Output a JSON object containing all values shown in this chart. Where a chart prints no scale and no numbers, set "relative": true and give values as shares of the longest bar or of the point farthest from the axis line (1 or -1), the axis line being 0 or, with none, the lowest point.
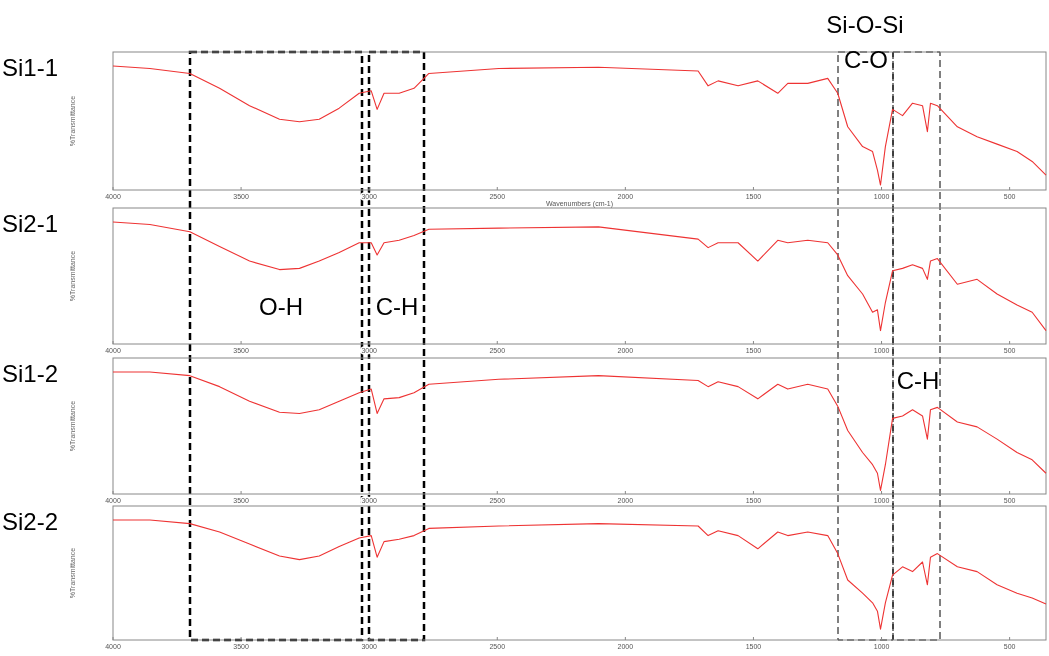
{
  "chart_data": [
    {
      "type": "line",
      "title": "Si1-1",
      "xlabel": "Wavenumbers (cm-1)",
      "ylabel": "%Transmittance",
      "relative": true,
      "xlim": [
        4000,
        358
      ],
      "xticks": [
        4000,
        3500,
        3000,
        2500,
        2000,
        1500,
        1000,
        500
      ],
      "x": [
        4000,
        3856,
        3700,
        3584,
        3467,
        3350,
        3272,
        3195,
        3117,
        3039,
        2992,
        2969,
        2942,
        2883,
        2825,
        2767,
        2494,
        2105,
        1716,
        1677,
        1638,
        1560,
        1483,
        1405,
        1366,
        1288,
        1210,
        1171,
        1132,
        1074,
        1035,
        1016,
        1004,
        985,
        957,
        918,
        879,
        840,
        821,
        809,
        782,
        704,
        627,
        549,
        471,
        412,
        358
      ],
      "series": [
        {
          "color": "#ee3333",
          "values": [
            1.0,
            0.98,
            0.94,
            0.82,
            0.68,
            0.57,
            0.55,
            0.57,
            0.66,
            0.78,
            0.8,
            0.65,
            0.78,
            0.78,
            0.82,
            0.94,
            0.98,
            0.99,
            0.96,
            0.84,
            0.88,
            0.84,
            0.88,
            0.78,
            0.86,
            0.86,
            0.9,
            0.78,
            0.51,
            0.35,
            0.31,
            0.16,
            0.04,
            0.35,
            0.65,
            0.6,
            0.7,
            0.68,
            0.47,
            0.7,
            0.68,
            0.51,
            0.43,
            0.37,
            0.31,
            0.23,
            0.12
          ]
        }
      ],
      "annotations": [
        "Si-O-Si",
        "C-O"
      ]
    },
    {
      "type": "line",
      "title": "Si2-1",
      "ylabel": "%Transmittance",
      "relative": true,
      "xlim": [
        4000,
        358
      ],
      "xticks": [
        4000,
        3500,
        3000,
        2500,
        2000,
        1500,
        1000,
        500
      ],
      "x": [
        4000,
        3856,
        3700,
        3584,
        3467,
        3350,
        3272,
        3195,
        3117,
        3039,
        2992,
        2969,
        2942,
        2883,
        2825,
        2767,
        2494,
        2105,
        1716,
        1677,
        1638,
        1560,
        1483,
        1405,
        1366,
        1288,
        1210,
        1171,
        1132,
        1074,
        1035,
        1016,
        1004,
        985,
        957,
        918,
        879,
        840,
        821,
        809,
        782,
        704,
        627,
        549,
        471,
        412,
        358
      ],
      "series": [
        {
          "color": "#ee3333",
          "values": [
            1.0,
            0.98,
            0.92,
            0.8,
            0.68,
            0.61,
            0.62,
            0.68,
            0.75,
            0.83,
            0.83,
            0.73,
            0.83,
            0.85,
            0.89,
            0.94,
            0.95,
            0.96,
            0.86,
            0.79,
            0.83,
            0.83,
            0.68,
            0.85,
            0.83,
            0.85,
            0.83,
            0.73,
            0.56,
            0.41,
            0.26,
            0.28,
            0.11,
            0.34,
            0.6,
            0.62,
            0.65,
            0.62,
            0.53,
            0.68,
            0.7,
            0.49,
            0.53,
            0.41,
            0.32,
            0.26,
            0.11
          ]
        }
      ],
      "annotations": [
        "O-H",
        "C-H"
      ]
    },
    {
      "type": "line",
      "title": "Si1-2",
      "ylabel": "%Transmittance",
      "relative": true,
      "xlim": [
        4000,
        358
      ],
      "xticks": [
        4000,
        3500,
        3000,
        2500,
        2000,
        1500,
        1000,
        500
      ],
      "x": [
        4000,
        3856,
        3700,
        3584,
        3467,
        3350,
        3272,
        3195,
        3117,
        3039,
        2992,
        2969,
        2942,
        2883,
        2825,
        2767,
        2494,
        2105,
        1716,
        1677,
        1638,
        1560,
        1483,
        1405,
        1366,
        1288,
        1210,
        1171,
        1132,
        1074,
        1035,
        1016,
        1004,
        985,
        957,
        918,
        879,
        840,
        821,
        809,
        782,
        704,
        627,
        549,
        471,
        412,
        358
      ],
      "series": [
        {
          "color": "#ee3333",
          "values": [
            1.0,
            1.0,
            0.97,
            0.88,
            0.76,
            0.67,
            0.66,
            0.69,
            0.76,
            0.83,
            0.86,
            0.66,
            0.78,
            0.79,
            0.83,
            0.9,
            0.94,
            0.97,
            0.93,
            0.88,
            0.92,
            0.88,
            0.78,
            0.9,
            0.86,
            0.9,
            0.86,
            0.72,
            0.52,
            0.34,
            0.24,
            0.17,
            0.03,
            0.24,
            0.62,
            0.64,
            0.69,
            0.64,
            0.45,
            0.69,
            0.71,
            0.59,
            0.55,
            0.45,
            0.34,
            0.28,
            0.17
          ]
        }
      ],
      "annotations": [
        "C-H"
      ]
    },
    {
      "type": "line",
      "title": "Si2-2",
      "ylabel": "%Transmittance",
      "relative": true,
      "xlim": [
        4000,
        358
      ],
      "xticks": [
        4000,
        3500,
        3000,
        2500,
        2000,
        1500,
        1000,
        500
      ],
      "x": [
        4000,
        3856,
        3700,
        3584,
        3467,
        3350,
        3272,
        3195,
        3117,
        3039,
        2992,
        2969,
        2942,
        2883,
        2825,
        2767,
        2494,
        2105,
        1716,
        1677,
        1638,
        1560,
        1483,
        1405,
        1366,
        1288,
        1210,
        1171,
        1132,
        1074,
        1035,
        1016,
        1004,
        985,
        957,
        918,
        879,
        840,
        821,
        809,
        782,
        704,
        627,
        549,
        471,
        412,
        358
      ],
      "series": [
        {
          "color": "#ee3333",
          "values": [
            1.0,
            1.0,
            0.97,
            0.9,
            0.8,
            0.7,
            0.67,
            0.7,
            0.78,
            0.85,
            0.87,
            0.69,
            0.82,
            0.84,
            0.87,
            0.93,
            0.95,
            0.97,
            0.95,
            0.87,
            0.91,
            0.87,
            0.76,
            0.9,
            0.87,
            0.9,
            0.87,
            0.72,
            0.5,
            0.39,
            0.31,
            0.24,
            0.09,
            0.31,
            0.54,
            0.61,
            0.57,
            0.65,
            0.46,
            0.69,
            0.72,
            0.61,
            0.57,
            0.46,
            0.39,
            0.35,
            0.3
          ]
        }
      ]
    }
  ]
}
